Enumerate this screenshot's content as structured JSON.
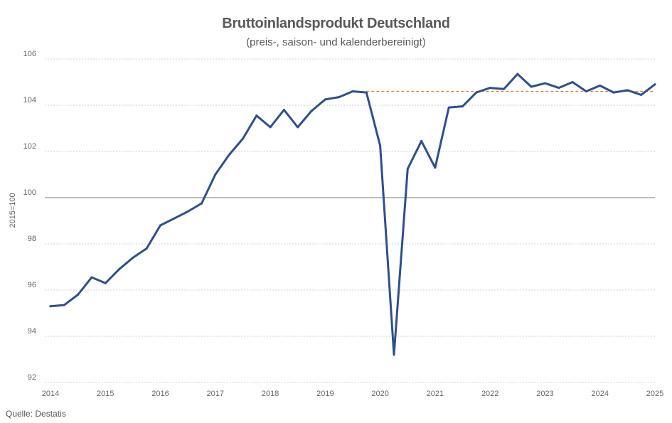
{
  "chart_data": {
    "type": "line",
    "title": "Bruttoinlandsprodukt Deutschland",
    "subtitle": "(preis-, saison- und kalenderbereinigt)",
    "xlabel": "",
    "ylabel": "2015=100",
    "ylim": [
      92,
      106
    ],
    "xlim": [
      2014,
      2025
    ],
    "y_ticks": [
      92,
      94,
      96,
      98,
      100,
      102,
      104,
      106
    ],
    "x_ticks": [
      "2014",
      "2015",
      "2016",
      "2017",
      "2018",
      "2019",
      "2020",
      "2021",
      "2022",
      "2023",
      "2024",
      "2025"
    ],
    "grid": true,
    "reference_line": 100,
    "series": [
      {
        "color": "#2e4f8f",
        "x": [
          2014.0,
          2014.25,
          2014.5,
          2014.75,
          2015.0,
          2015.25,
          2015.5,
          2015.75,
          2016.0,
          2016.25,
          2016.5,
          2016.75,
          2017.0,
          2017.25,
          2017.5,
          2017.75,
          2018.0,
          2018.25,
          2018.5,
          2018.75,
          2019.0,
          2019.25,
          2019.5,
          2019.75,
          2020.0,
          2020.25,
          2020.5,
          2020.75,
          2021.0,
          2021.25,
          2021.5,
          2021.75,
          2022.0,
          2022.25,
          2022.5,
          2022.75,
          2023.0,
          2023.25,
          2023.5,
          2023.75,
          2024.0,
          2024.25,
          2024.5,
          2024.75,
          2025.0
        ],
        "values": [
          95.3,
          95.35,
          95.8,
          96.55,
          96.3,
          96.9,
          97.4,
          97.8,
          98.8,
          99.1,
          99.4,
          99.75,
          101.0,
          101.85,
          102.55,
          103.55,
          103.05,
          103.8,
          103.05,
          103.75,
          104.25,
          104.35,
          104.6,
          104.55,
          102.25,
          93.2,
          101.25,
          102.45,
          101.3,
          103.9,
          103.95,
          104.55,
          104.75,
          104.7,
          105.35,
          104.8,
          104.95,
          104.75,
          105.0,
          104.6,
          104.85,
          104.55,
          104.65,
          104.45,
          104.9
        ]
      }
    ],
    "dashed_reference": {
      "color": "#e07a30",
      "y": 104.6,
      "x_start": 2019.75,
      "x_end": 2025.0
    },
    "source": "Quelle: Destatis"
  }
}
